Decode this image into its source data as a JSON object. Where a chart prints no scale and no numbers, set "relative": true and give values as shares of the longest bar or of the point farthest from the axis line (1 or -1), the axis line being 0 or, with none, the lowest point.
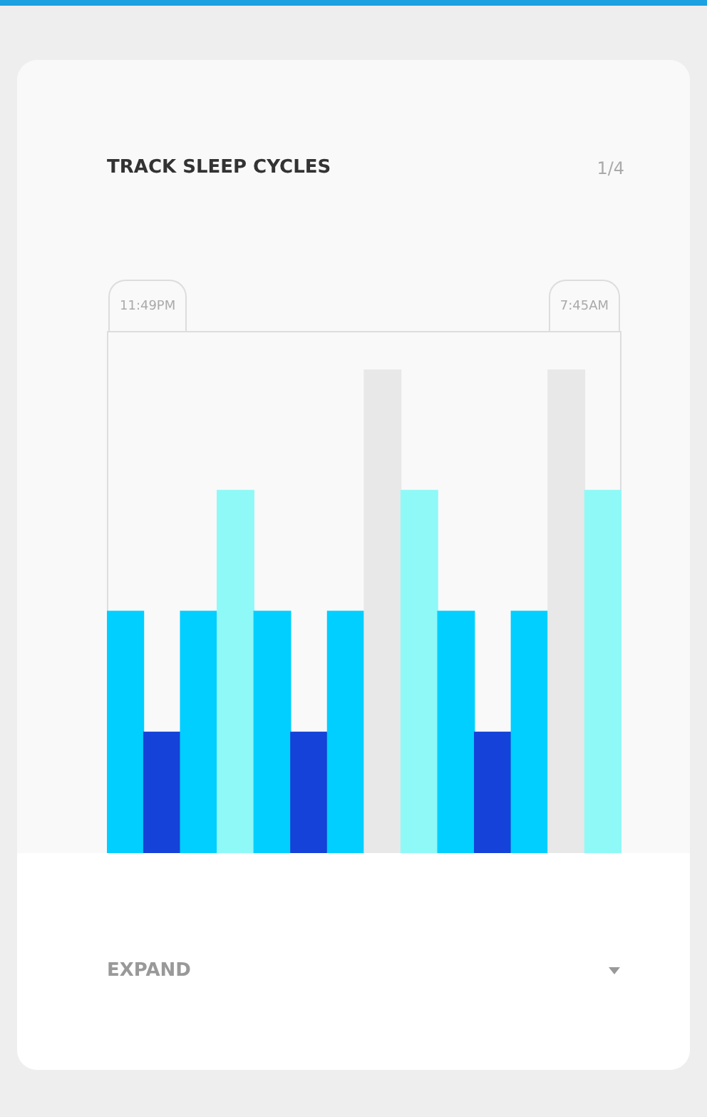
{
  "chart_data": {
    "type": "bar",
    "title": "TRACK SLEEP CYCLES",
    "relative": true,
    "categories": [
      null,
      null,
      null,
      null,
      null,
      null,
      null,
      null,
      null,
      null,
      null,
      null,
      null,
      null
    ],
    "values": [
      0.5,
      0.25,
      0.5,
      0.75,
      0.5,
      0.25,
      0.5,
      1,
      0.75,
      0.5,
      0.25,
      0.5,
      1,
      0.75
    ],
    "colors": [
      "#00cfff",
      "#1542d8",
      "#00cfff",
      "#8ff9f7",
      "#00cfff",
      "#1542d8",
      "#00cfff",
      "#e8e8e8",
      "#8ff9f7",
      "#00cfff",
      "#1542d8",
      "#00cfff",
      "#e8e8e8",
      "#8ff9f7"
    ],
    "annotations": [
      "1/4",
      "11:49PM",
      "7:45AM",
      "EXPAND"
    ]
  }
}
